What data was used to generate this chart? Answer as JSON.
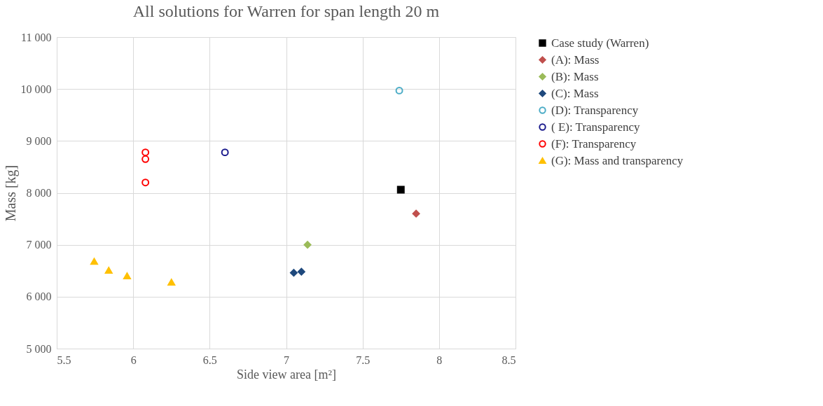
{
  "chart_data": {
    "type": "scatter",
    "title": "All solutions for Warren for span length 20 m",
    "xlabel": "Side view area [m²]",
    "ylabel": "Mass [kg]",
    "xlim": [
      5.5,
      8.5
    ],
    "xticks": [
      5.5,
      6,
      6.5,
      7,
      7.5,
      8,
      8.5
    ],
    "ylim": [
      5000,
      11000
    ],
    "yticks": [
      {
        "value": 5000,
        "label": "5 000"
      },
      {
        "value": 6000,
        "label": "6 000"
      },
      {
        "value": 7000,
        "label": "7 000"
      },
      {
        "value": 8000,
        "label": "8 000"
      },
      {
        "value": 9000,
        "label": "9 000"
      },
      {
        "value": 10000,
        "label": "10 000"
      },
      {
        "value": 11000,
        "label": "11 000"
      }
    ],
    "grid": true,
    "legend": "right",
    "series": [
      {
        "name": "Case study (Warren)",
        "color": "#000000",
        "marker": "square",
        "x": [
          7.75
        ],
        "values": [
          8060
        ]
      },
      {
        "name": "(A): Mass",
        "color": "#c0504d",
        "marker": "diamond",
        "x": [
          7.85
        ],
        "values": [
          7600
        ]
      },
      {
        "name": "(B): Mass",
        "color": "#9bbb59",
        "marker": "diamond",
        "x": [
          7.14
        ],
        "values": [
          7000
        ]
      },
      {
        "name": "(C): Mass",
        "color": "#1f497d",
        "marker": "diamond",
        "x": [
          7.05,
          7.1
        ],
        "values": [
          6460,
          6480
        ]
      },
      {
        "name": "(D): Transparency",
        "color": "#4bacc6",
        "marker": "circle",
        "x": [
          7.74
        ],
        "values": [
          9970
        ]
      },
      {
        "name": "( E): Transparency",
        "color": "#1a1a8c",
        "marker": "circle",
        "x": [
          6.6
        ],
        "values": [
          8780
        ]
      },
      {
        "name": "(F): Transparency",
        "color": "#ff0000",
        "marker": "circle",
        "x": [
          6.08,
          6.08,
          6.08
        ],
        "values": [
          8780,
          8650,
          8200
        ]
      },
      {
        "name": "(G): Mass and transparency",
        "color": "#ffc000",
        "marker": "triangle",
        "x": [
          5.745,
          5.84,
          5.96,
          6.25
        ],
        "values": [
          6680,
          6510,
          6400,
          6280
        ]
      }
    ]
  }
}
